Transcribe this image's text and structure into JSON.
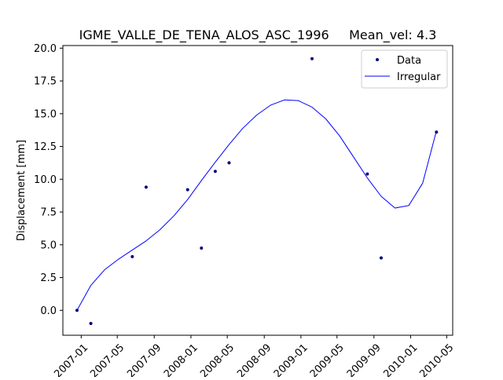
{
  "chart_data": {
    "type": "scatter",
    "title": "IGME_VALLE_DE_TENA_ALOS_ASC_1996     Mean_vel: 4.3",
    "xlabel": "",
    "ylabel": "Displacement [mm]",
    "xlim": [
      "2006-11-01",
      "2010-05-21"
    ],
    "ylim": [
      -1.9,
      20.2
    ],
    "x_ticks": [
      "2007-01",
      "2007-05",
      "2007-09",
      "2008-01",
      "2008-05",
      "2008-09",
      "2009-01",
      "2009-05",
      "2009-09",
      "2010-01",
      "2010-05"
    ],
    "y_ticks": [
      0.0,
      2.5,
      5.0,
      7.5,
      10.0,
      12.5,
      15.0,
      17.5,
      20.0
    ],
    "y_tick_labels": [
      "0.0",
      "2.5",
      "5.0",
      "7.5",
      "10.0",
      "12.5",
      "15.0",
      "17.5",
      "20.0"
    ],
    "grid": false,
    "legend_position": "top-right",
    "series": [
      {
        "name": "Data",
        "kind": "scatter",
        "color": "#000080",
        "points": [
          {
            "x": "2006-12-18",
            "y": 0.0
          },
          {
            "x": "2007-02-02",
            "y": -1.0
          },
          {
            "x": "2007-06-20",
            "y": 4.1
          },
          {
            "x": "2007-08-05",
            "y": 9.4
          },
          {
            "x": "2007-12-21",
            "y": 9.2
          },
          {
            "x": "2008-02-05",
            "y": 4.75
          },
          {
            "x": "2008-03-22",
            "y": 10.6
          },
          {
            "x": "2008-05-07",
            "y": 11.25
          },
          {
            "x": "2009-02-07",
            "y": 19.2
          },
          {
            "x": "2009-08-10",
            "y": 10.4
          },
          {
            "x": "2009-09-25",
            "y": 4.0
          },
          {
            "x": "2010-03-28",
            "y": 13.6
          }
        ]
      },
      {
        "name": "Irregular",
        "kind": "line",
        "color": "#0000ff",
        "points": [
          {
            "x": "2006-12-18",
            "y": 0.0
          },
          {
            "x": "2007-02-02",
            "y": 1.9
          },
          {
            "x": "2007-03-20",
            "y": 3.1
          },
          {
            "x": "2007-05-05",
            "y": 3.9
          },
          {
            "x": "2007-06-20",
            "y": 4.6
          },
          {
            "x": "2007-08-05",
            "y": 5.3
          },
          {
            "x": "2007-09-20",
            "y": 6.15
          },
          {
            "x": "2007-11-05",
            "y": 7.2
          },
          {
            "x": "2007-12-21",
            "y": 8.45
          },
          {
            "x": "2008-02-05",
            "y": 9.9
          },
          {
            "x": "2008-03-22",
            "y": 11.3
          },
          {
            "x": "2008-05-07",
            "y": 12.65
          },
          {
            "x": "2008-06-22",
            "y": 13.9
          },
          {
            "x": "2008-08-07",
            "y": 14.9
          },
          {
            "x": "2008-09-22",
            "y": 15.65
          },
          {
            "x": "2008-11-07",
            "y": 16.05
          },
          {
            "x": "2008-12-23",
            "y": 16.0
          },
          {
            "x": "2009-02-07",
            "y": 15.5
          },
          {
            "x": "2009-03-25",
            "y": 14.6
          },
          {
            "x": "2009-05-10",
            "y": 13.3
          },
          {
            "x": "2009-06-25",
            "y": 11.7
          },
          {
            "x": "2009-08-10",
            "y": 10.1
          },
          {
            "x": "2009-09-25",
            "y": 8.7
          },
          {
            "x": "2009-11-10",
            "y": 7.8
          },
          {
            "x": "2009-12-26",
            "y": 8.0
          },
          {
            "x": "2010-02-10",
            "y": 9.7
          },
          {
            "x": "2010-03-28",
            "y": 13.7
          }
        ]
      }
    ]
  }
}
